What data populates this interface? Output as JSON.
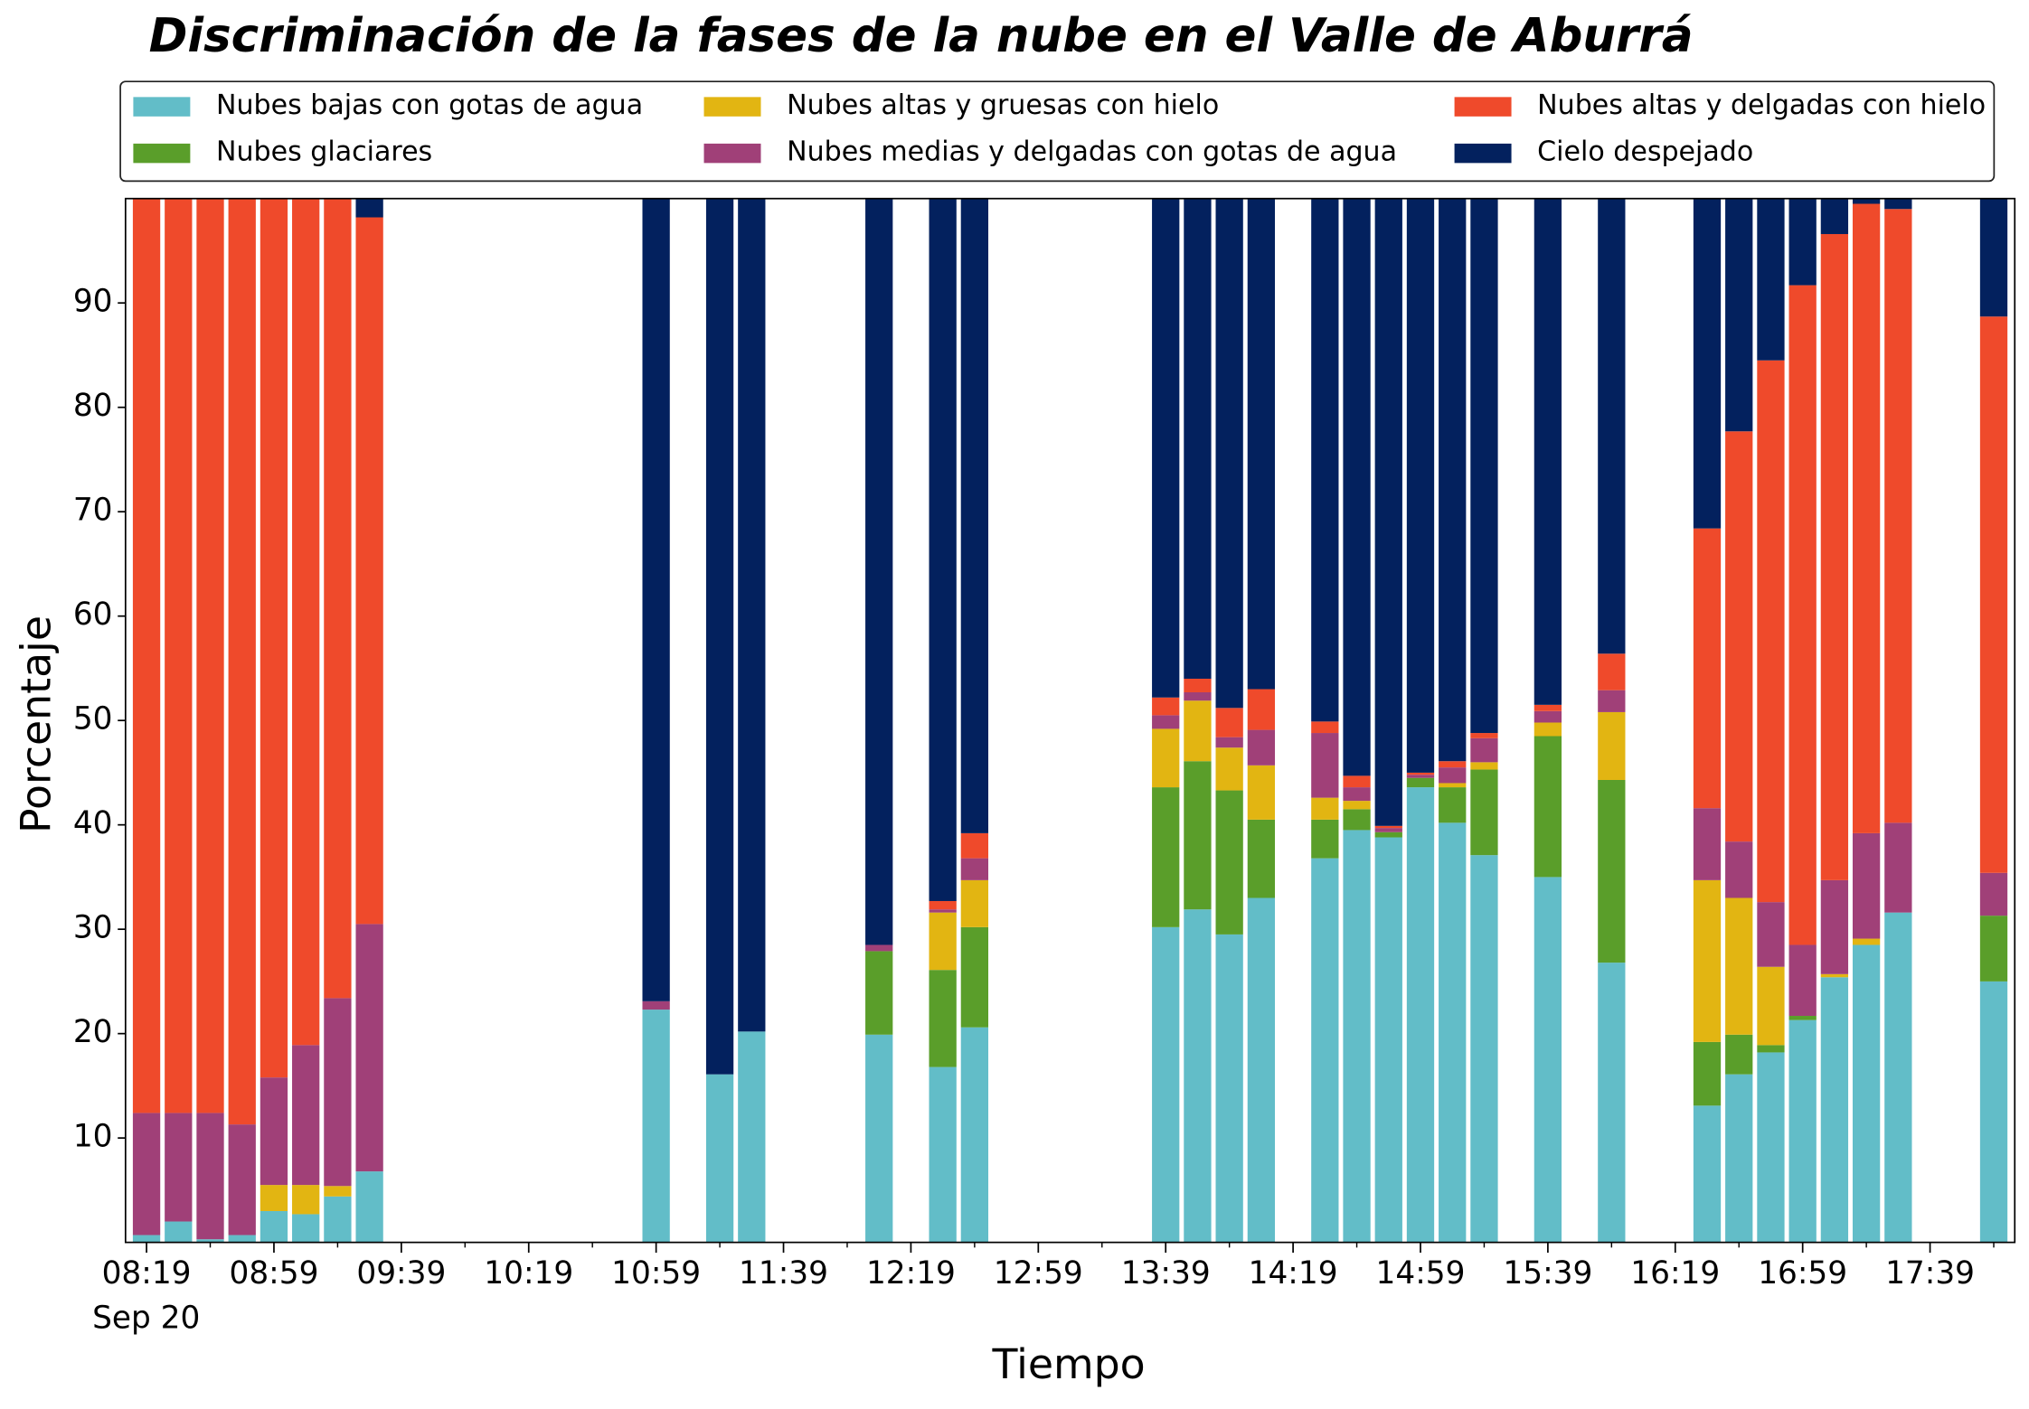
{
  "chart_data": {
    "type": "stacked_bar",
    "title": "Discriminación de la fases de la nube en el Valle de Aburrá",
    "x_label": "Tiempo",
    "y_label": "Porcentaje",
    "x_date_label": "Sep 20",
    "categories": [
      "08:19",
      null,
      null,
      null,
      "08:59",
      null,
      null,
      null,
      "09:39",
      null,
      null,
      null,
      "10:19",
      null,
      null,
      null,
      "10:59",
      null,
      null,
      null,
      "11:39",
      null,
      null,
      null,
      "12:19",
      null,
      null,
      null,
      "12:59",
      null,
      null,
      null,
      "13:39",
      null,
      null,
      null,
      "14:19",
      null,
      null,
      null,
      "14:59",
      null,
      null,
      null,
      "15:39",
      null,
      null,
      null,
      "16:19",
      null,
      null,
      null,
      "16:59",
      null,
      null,
      null,
      "17:39",
      null,
      null
    ],
    "series": [
      {
        "name": "Nubes bajas con gotas de agua",
        "color": "#62bdc8",
        "values": [
          0.7,
          2,
          0.3,
          0.7,
          3,
          2.7,
          4.4,
          6.8,
          null,
          null,
          null,
          null,
          null,
          null,
          null,
          null,
          22.3,
          null,
          16.1,
          20.2,
          null,
          null,
          null,
          19.9,
          null,
          16.8,
          20.6,
          null,
          null,
          null,
          null,
          null,
          30.2,
          31.9,
          29.5,
          33,
          null,
          36.8,
          39.5,
          38.8,
          43.6,
          40.2,
          37.1,
          null,
          35,
          null,
          26.8,
          null,
          null,
          13.1,
          16.1,
          18.2,
          21.3,
          25.4,
          28.5,
          31.6,
          null,
          null,
          25
        ]
      },
      {
        "name": "Nubes glaciares",
        "color": "#5a9e2a",
        "values": [
          0,
          0,
          0,
          0,
          0,
          0,
          0,
          0,
          null,
          null,
          null,
          null,
          null,
          null,
          null,
          null,
          0,
          null,
          0,
          0,
          null,
          null,
          null,
          8,
          null,
          9.3,
          9.6,
          null,
          null,
          null,
          null,
          null,
          13.4,
          14.2,
          13.8,
          7.5,
          null,
          3.7,
          2,
          0.5,
          0.9,
          3.4,
          8.2,
          null,
          13.5,
          null,
          17.5,
          null,
          null,
          6.1,
          3.8,
          0.7,
          0.4,
          0,
          0,
          0,
          null,
          null,
          6.3
        ]
      },
      {
        "name": "Nubes altas y gruesas con hielo",
        "color": "#e2b512",
        "values": [
          0,
          0,
          0,
          0,
          2.5,
          2.8,
          1,
          0,
          null,
          null,
          null,
          null,
          null,
          null,
          null,
          null,
          0,
          null,
          0,
          0,
          null,
          null,
          null,
          0,
          null,
          5.5,
          4.5,
          null,
          null,
          null,
          null,
          null,
          5.6,
          5.8,
          4.1,
          5.2,
          null,
          2.1,
          0.8,
          0,
          0,
          0.4,
          0.7,
          null,
          1.3,
          null,
          6.5,
          null,
          null,
          15.5,
          13.1,
          7.5,
          0,
          0.3,
          0.6,
          0,
          null,
          null,
          0
        ]
      },
      {
        "name": "Nubes medias y delgadas con gotas de agua",
        "color": "#a04078",
        "values": [
          11.7,
          10.4,
          12.1,
          10.6,
          10.3,
          13.4,
          18,
          23.7,
          null,
          null,
          null,
          null,
          null,
          null,
          null,
          null,
          0.8,
          null,
          0,
          0,
          null,
          null,
          null,
          0.6,
          null,
          0.3,
          2.1,
          null,
          null,
          null,
          null,
          null,
          1.3,
          0.8,
          1,
          3.4,
          null,
          6.2,
          1.3,
          0.4,
          0.3,
          1.5,
          2.3,
          null,
          1.1,
          null,
          2.1,
          null,
          null,
          6.9,
          5.4,
          6.2,
          6.8,
          9,
          10.1,
          8.6,
          null,
          null,
          4.1
        ]
      },
      {
        "name": "Nubes altas y delgadas con hielo",
        "color": "#ef4a2b",
        "values": [
          87.6,
          87.6,
          87.6,
          88.7,
          84.2,
          81.1,
          76.6,
          67.7,
          null,
          null,
          null,
          null,
          null,
          null,
          null,
          null,
          0,
          null,
          0,
          0,
          null,
          null,
          null,
          0,
          null,
          0.8,
          2.4,
          null,
          null,
          null,
          null,
          null,
          1.7,
          1.3,
          2.8,
          3.9,
          null,
          1.1,
          1.1,
          0.2,
          0.2,
          0.6,
          0.5,
          null,
          0.6,
          null,
          3.5,
          null,
          null,
          26.8,
          39.3,
          51.9,
          63.2,
          61.9,
          60.3,
          58.8,
          null,
          null,
          53.3
        ]
      },
      {
        "name": "Cielo despejado",
        "color": "#03215e",
        "values": [
          0,
          0,
          0,
          0,
          0,
          0,
          0,
          1.8,
          null,
          null,
          null,
          null,
          null,
          null,
          null,
          null,
          76.9,
          null,
          83.9,
          79.8,
          null,
          null,
          null,
          71.5,
          null,
          67.3,
          60.8,
          null,
          null,
          null,
          null,
          null,
          47.8,
          46,
          48.8,
          47,
          null,
          50.1,
          55.3,
          60.1,
          55,
          53.9,
          51.2,
          null,
          48.5,
          null,
          43.6,
          null,
          null,
          31.6,
          22.3,
          15.5,
          8.3,
          3.4,
          0.5,
          1,
          null,
          null,
          11.3
        ]
      }
    ],
    "ylim": [
      0,
      100
    ],
    "yticks": [
      10,
      20,
      30,
      40,
      50,
      60,
      70,
      80,
      90
    ]
  }
}
